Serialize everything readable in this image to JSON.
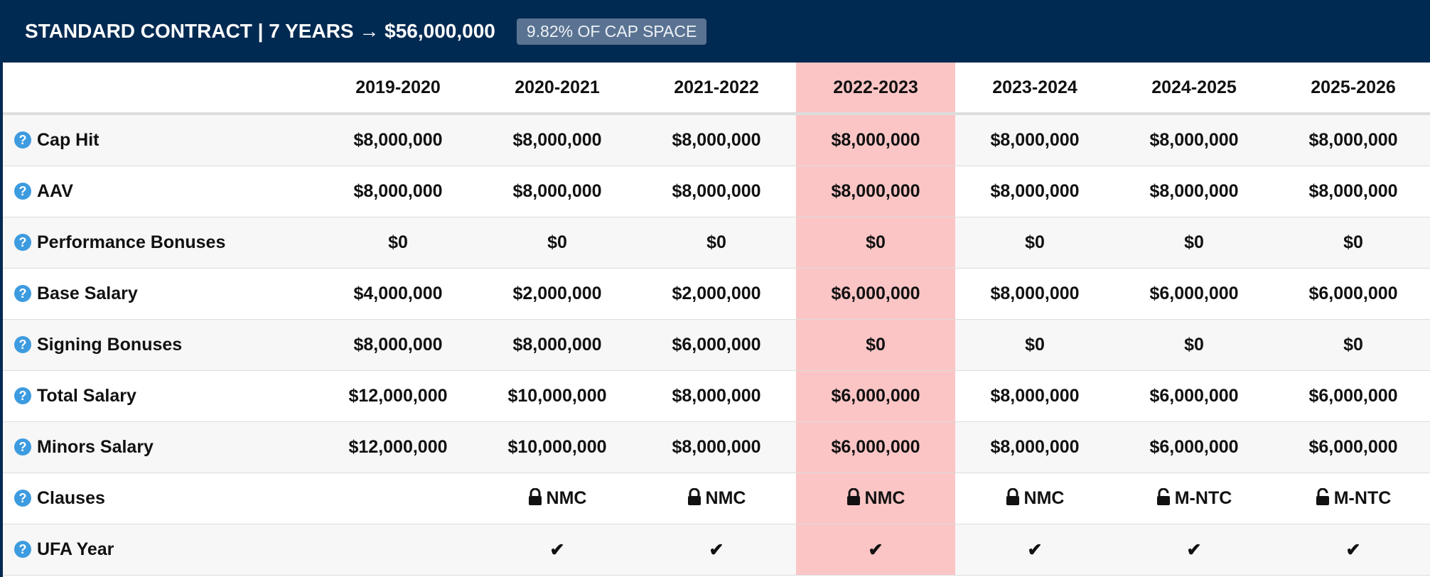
{
  "header": {
    "title": "STANDARD CONTRACT | 7 YEARS → $56,000,000",
    "badge": "9.82% OF CAP SPACE"
  },
  "table": {
    "columns": [
      "2019-2020",
      "2020-2021",
      "2021-2022",
      "2022-2023",
      "2023-2024",
      "2024-2025",
      "2025-2026"
    ],
    "rows": [
      {
        "label": "Cap Hit",
        "cells": [
          "$8,000,000",
          "$8,000,000",
          "$8,000,000",
          "$8,000,000",
          "$8,000,000",
          "$8,000,000",
          "$8,000,000"
        ]
      },
      {
        "label": "AAV",
        "cells": [
          "$8,000,000",
          "$8,000,000",
          "$8,000,000",
          "$8,000,000",
          "$8,000,000",
          "$8,000,000",
          "$8,000,000"
        ]
      },
      {
        "label": "Performance Bonuses",
        "cells": [
          "$0",
          "$0",
          "$0",
          "$0",
          "$0",
          "$0",
          "$0"
        ]
      },
      {
        "label": "Base Salary",
        "cells": [
          "$4,000,000",
          "$2,000,000",
          "$2,000,000",
          "$6,000,000",
          "$8,000,000",
          "$6,000,000",
          "$6,000,000"
        ]
      },
      {
        "label": "Signing Bonuses",
        "cells": [
          "$8,000,000",
          "$8,000,000",
          "$6,000,000",
          "$0",
          "$0",
          "$0",
          "$0"
        ]
      },
      {
        "label": "Total Salary",
        "cells": [
          "$12,000,000",
          "$10,000,000",
          "$8,000,000",
          "$6,000,000",
          "$8,000,000",
          "$6,000,000",
          "$6,000,000"
        ]
      },
      {
        "label": "Minors Salary",
        "cells": [
          "$12,000,000",
          "$10,000,000",
          "$8,000,000",
          "$6,000,000",
          "$8,000,000",
          "$6,000,000",
          "$6,000,000"
        ]
      },
      {
        "label": "Clauses",
        "cells": [
          null,
          "NMC",
          "NMC",
          "NMC",
          "NMC",
          "M-NTC",
          "M-NTC"
        ]
      },
      {
        "label": "UFA Year",
        "cells": [
          null,
          "✔",
          "✔",
          "✔",
          "✔",
          "✔",
          "✔"
        ]
      }
    ]
  }
}
